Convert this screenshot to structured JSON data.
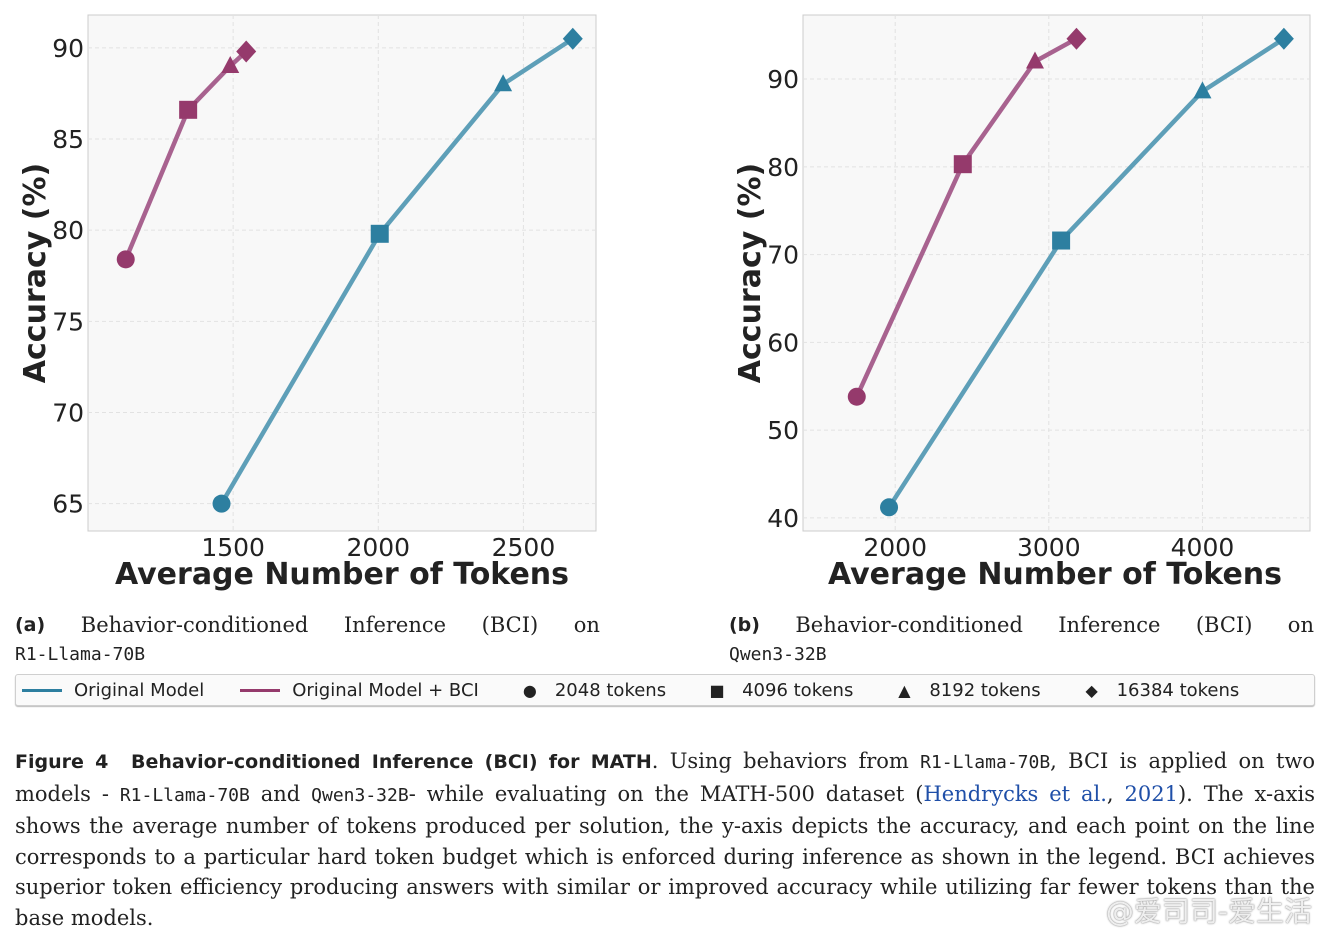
{
  "colors": {
    "original": "#5e9fb8",
    "bci": "#a8628f",
    "original_marker": "#2d7fa0",
    "bci_marker": "#953a6c"
  },
  "chart_data": [
    {
      "type": "line",
      "xlabel": "Average Number of Tokens",
      "ylabel": "Accuracy (%)",
      "xlim": [
        1000,
        2750
      ],
      "ylim": [
        63.5,
        91.8
      ],
      "xticks": [
        1500,
        2000,
        2500
      ],
      "yticks": [
        65,
        70,
        75,
        80,
        85,
        90
      ],
      "grid": true,
      "series": [
        {
          "name": "Original Model",
          "color_key": "original",
          "points": [
            {
              "x": 1460,
              "y": 65.0,
              "marker": "circle"
            },
            {
              "x": 2005,
              "y": 79.8,
              "marker": "square"
            },
            {
              "x": 2430,
              "y": 88.0,
              "marker": "triangle"
            },
            {
              "x": 2670,
              "y": 90.5,
              "marker": "diamond"
            }
          ]
        },
        {
          "name": "Original Model + BCI",
          "color_key": "bci",
          "points": [
            {
              "x": 1130,
              "y": 78.4,
              "marker": "circle"
            },
            {
              "x": 1345,
              "y": 86.6,
              "marker": "square"
            },
            {
              "x": 1490,
              "y": 89.0,
              "marker": "triangle"
            },
            {
              "x": 1545,
              "y": 89.8,
              "marker": "diamond"
            }
          ]
        }
      ]
    },
    {
      "type": "line",
      "xlabel": "Average Number of Tokens",
      "ylabel": "Accuracy (%)",
      "xlim": [
        1400,
        4700
      ],
      "ylim": [
        38.5,
        97.3
      ],
      "xticks": [
        2000,
        3000,
        4000
      ],
      "yticks": [
        40,
        50,
        60,
        70,
        80,
        90
      ],
      "grid": true,
      "series": [
        {
          "name": "Original Model",
          "color_key": "original",
          "points": [
            {
              "x": 1960,
              "y": 41.2,
              "marker": "circle"
            },
            {
              "x": 3080,
              "y": 71.6,
              "marker": "square"
            },
            {
              "x": 4000,
              "y": 88.6,
              "marker": "triangle"
            },
            {
              "x": 4530,
              "y": 94.6,
              "marker": "diamond"
            }
          ]
        },
        {
          "name": "Original Model + BCI",
          "color_key": "bci",
          "points": [
            {
              "x": 1750,
              "y": 53.8,
              "marker": "circle"
            },
            {
              "x": 2440,
              "y": 80.3,
              "marker": "square"
            },
            {
              "x": 2910,
              "y": 92.0,
              "marker": "triangle"
            },
            {
              "x": 3180,
              "y": 94.6,
              "marker": "diamond"
            }
          ]
        }
      ]
    }
  ],
  "subcaptions": [
    {
      "label": "(a)",
      "words": [
        "Behavior-conditioned",
        "Inference",
        "(BCI)",
        "on"
      ],
      "model": "R1-Llama-70B"
    },
    {
      "label": "(b)",
      "words": [
        "Behavior-conditioned",
        "Inference",
        "(BCI)",
        "on"
      ],
      "model": "Qwen3-32B"
    }
  ],
  "legend": {
    "line1": "Original Model",
    "line2": "Original Model + BCI",
    "m1": "2048 tokens",
    "m2": "4096 tokens",
    "m3": "8192 tokens",
    "m4": "16384 tokens"
  },
  "caption": {
    "label": "Figure 4",
    "title": "Behavior-conditioned Inference (BCI) for MATH",
    "t1": ". Using behaviors from ",
    "c1": "R1-Llama-70B",
    "t2": ", BCI is applied on two models - ",
    "c2": "R1-Llama-70B",
    "t3": " and ",
    "c3": "Qwen3-32B",
    "t4": "- while evaluating on the MATH-500 dataset (",
    "ref": "Hendrycks et al.",
    "t5": ", ",
    "year": "2021",
    "t6": "). The x-axis shows the average number of tokens produced per solution, the y-axis depicts the accuracy, and each point on the line corresponds to a particular hard token budget which is enforced during inference as shown in the legend. BCI achieves superior token efficiency producing answers with similar or improved accuracy while utilizing far fewer tokens than the base models."
  },
  "watermark": "@爱司司-爱生活"
}
